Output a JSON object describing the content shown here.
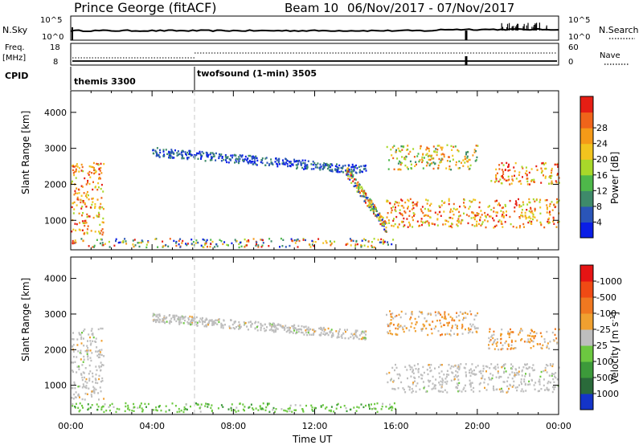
{
  "header": {
    "title": "Prince George (fitACF)",
    "beam": "Beam 10",
    "date_range": "06/Nov/2017 - 07/Nov/2017"
  },
  "status_panels": {
    "nsky_label": "N.Sky",
    "nsearch_label": "N.Search",
    "freq_label_1": "Freq.",
    "freq_label_2": "[MHz]",
    "nave_label": "Nave",
    "cpid_label": "CPID",
    "nsky_ticks": [
      "10^5",
      "10^0"
    ],
    "nsearch_ticks": [
      "10^5",
      "10^0"
    ],
    "freq_ticks": [
      "18",
      "8"
    ],
    "nave_ticks": [
      "60",
      "0"
    ],
    "cpid_segments": [
      {
        "label": "themis 3300",
        "start_hour": 0
      },
      {
        "label": "twofsound (1-min) 3505",
        "start_hour": 6
      }
    ]
  },
  "chart_data": [
    {
      "type": "heatmap",
      "title": "",
      "xlabel": "Time UT",
      "ylabel": "Slant Range [km]",
      "x_ticks": [
        "00:00",
        "04:00",
        "08:00",
        "12:00",
        "16:00",
        "20:00",
        "00:00"
      ],
      "x_range_hours": [
        0,
        24
      ],
      "y_ticks": [
        1000,
        2000,
        3000,
        4000
      ],
      "ylim": [
        180,
        4600
      ],
      "colorbar": {
        "label": "Power [dB]",
        "ticks": [
          "4",
          "8",
          "12",
          "16",
          "20",
          "24",
          "28"
        ],
        "colors": [
          "#0a1ee6",
          "#2a55b8",
          "#3e8a6a",
          "#4eb84a",
          "#a8d82a",
          "#f2c41e",
          "#f59a18",
          "#f0641a",
          "#e61e14"
        ]
      },
      "features": [
        {
          "name": "near-range ground band",
          "hours": [
            0,
            16
          ],
          "range_km": [
            250,
            500
          ],
          "level": "mixed"
        },
        {
          "name": "early echo",
          "hours": [
            0,
            1.6
          ],
          "range_km": [
            600,
            2600
          ],
          "level": "high"
        },
        {
          "name": "mid-range arc",
          "hours": [
            4,
            14.5
          ],
          "range_km": [
            2300,
            3000
          ],
          "level": "low"
        },
        {
          "name": "descending band",
          "hours": [
            13.5,
            15.5
          ],
          "range_km": [
            800,
            2400
          ],
          "level": "mixed"
        },
        {
          "name": "main band",
          "hours": [
            15.5,
            24
          ],
          "range_km": [
            800,
            1600
          ],
          "level": "high"
        },
        {
          "name": "upper band",
          "hours": [
            15.5,
            20
          ],
          "range_km": [
            2400,
            3100
          ],
          "level": "medium"
        },
        {
          "name": "late upper band",
          "hours": [
            20.5,
            24
          ],
          "range_km": [
            2000,
            2600
          ],
          "level": "high"
        }
      ]
    },
    {
      "type": "heatmap",
      "title": "",
      "xlabel": "Time UT",
      "ylabel": "Slant Range [km]",
      "x_ticks": [
        "00:00",
        "04:00",
        "08:00",
        "12:00",
        "16:00",
        "20:00",
        "00:00"
      ],
      "x_range_hours": [
        0,
        24
      ],
      "y_ticks": [
        1000,
        2000,
        3000,
        4000
      ],
      "ylim": [
        180,
        4600
      ],
      "colorbar": {
        "label": "Velocity [m s",
        "label_superscript": "-1",
        "label_end": "]",
        "ticks": [
          "1000",
          "500",
          "100",
          "25",
          "-25",
          "-100",
          "-500",
          "-1000"
        ],
        "colors": [
          "#1434c8",
          "#2a6a3a",
          "#3c9a3a",
          "#6cc840",
          "#bebebe",
          "#f0a030",
          "#f07820",
          "#f04a14",
          "#e61414"
        ]
      },
      "features": [
        {
          "name": "near-range ground band",
          "hours": [
            0,
            16
          ],
          "range_km": [
            250,
            500
          ],
          "velocity": "positive"
        },
        {
          "name": "early echo",
          "hours": [
            0,
            1.6
          ],
          "range_km": [
            600,
            2600
          ],
          "velocity": "near zero"
        },
        {
          "name": "mid-range arc",
          "hours": [
            4,
            14.5
          ],
          "range_km": [
            2300,
            3000
          ],
          "velocity": "near zero"
        },
        {
          "name": "main band",
          "hours": [
            15.5,
            24
          ],
          "range_km": [
            800,
            1600
          ],
          "velocity": "near zero"
        },
        {
          "name": "upper band",
          "hours": [
            15.5,
            20
          ],
          "range_km": [
            2400,
            3100
          ],
          "velocity": "negative"
        },
        {
          "name": "late upper band",
          "hours": [
            20.5,
            24
          ],
          "range_km": [
            2000,
            2600
          ],
          "velocity": "negative"
        }
      ]
    }
  ]
}
